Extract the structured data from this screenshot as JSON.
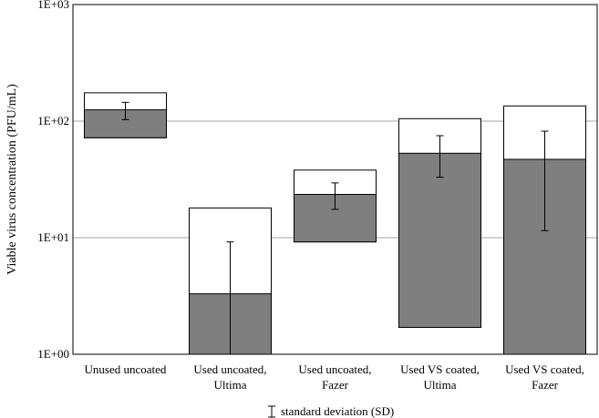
{
  "chart_data": {
    "type": "bar",
    "ylabel": "Viable virus concentration (PFU/mL)",
    "yscale": "log",
    "ylim": [
      1,
      1000
    ],
    "yticks": [
      {
        "value": 1,
        "label": "1E+00"
      },
      {
        "value": 10,
        "label": "1E+01"
      },
      {
        "value": 100,
        "label": "1E+02"
      },
      {
        "value": 1000,
        "label": "1E+03"
      }
    ],
    "grid": true,
    "categories": [
      [
        "Unused uncoated"
      ],
      [
        "Used uncoated,",
        "Ultima"
      ],
      [
        "Used uncoated,",
        "Fazer"
      ],
      [
        "Used VS coated,",
        "Ultima"
      ],
      [
        "Used VS coated,",
        "Fazer"
      ]
    ],
    "series": [
      {
        "role": "range",
        "color": "#ffffff",
        "stroke": "#000000",
        "low": [
          72,
          1,
          9.2,
          1.7,
          1
        ],
        "high": [
          175,
          18,
          38,
          105,
          135
        ]
      },
      {
        "role": "mean",
        "color": "#7f7f7f",
        "low": [
          72,
          1,
          9.2,
          1.7,
          1
        ],
        "high": [
          125,
          3.3,
          23.5,
          53,
          47
        ]
      }
    ],
    "error_bars": {
      "center": [
        125,
        3.3,
        23.5,
        53,
        47
      ],
      "lower": [
        103,
        1,
        17.5,
        33,
        11.5
      ],
      "upper": [
        145,
        9.2,
        29.5,
        75,
        82
      ]
    },
    "legend": {
      "label": "standard deviation (SD)",
      "position": "bottom"
    }
  }
}
